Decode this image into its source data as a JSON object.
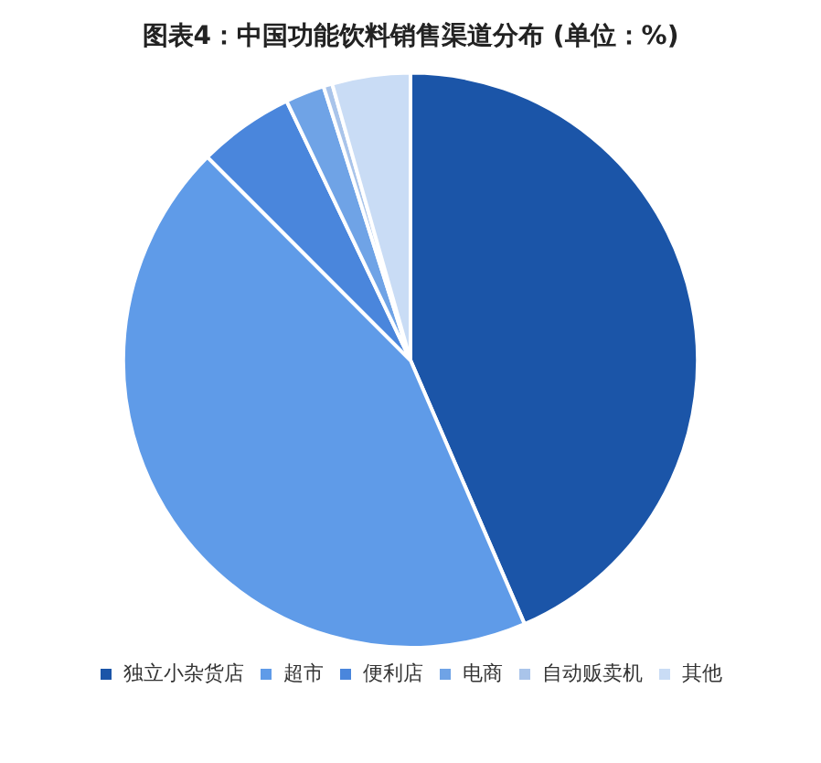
{
  "chart_data": {
    "type": "pie",
    "title": "图表4：中国功能饮料销售渠道分布 (单位：%)",
    "categories": [
      "独立小杂货店",
      "超市",
      "便利店",
      "电商",
      "自动贩卖机",
      "其他"
    ],
    "values": [
      43.5,
      44,
      5.4,
      2.2,
      0.5,
      4.4
    ],
    "colors": [
      "#1b55a8",
      "#5f9be8",
      "#4a86dc",
      "#6fa3e6",
      "#a9c4ea",
      "#c9dcf5"
    ],
    "legend": "bottom"
  }
}
